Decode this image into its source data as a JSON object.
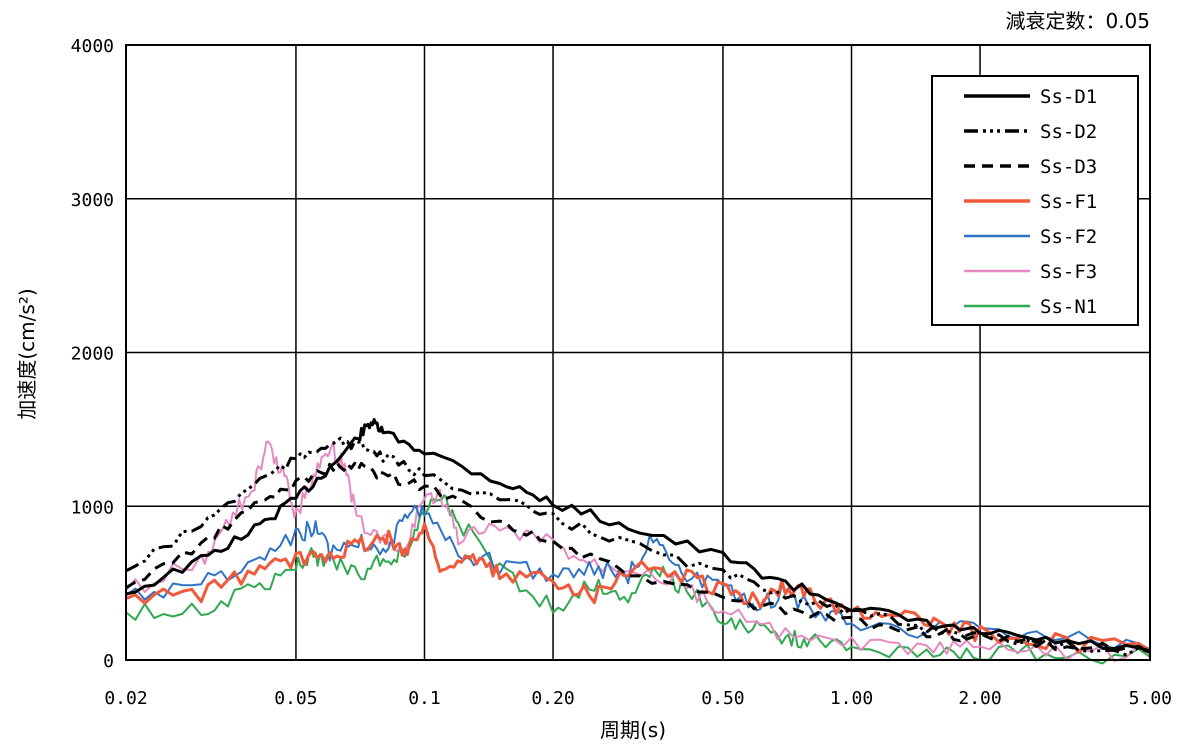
{
  "chart_data": {
    "type": "line",
    "annotation": "減衰定数：0.05",
    "xlabel": "周期(s)",
    "ylabel": "加速度(cm/s²)",
    "x_scale": "log",
    "xlim": [
      0.02,
      5.0
    ],
    "ylim": [
      0,
      4000
    ],
    "x_ticks": [
      0.02,
      0.05,
      0.1,
      0.2,
      0.5,
      1.0,
      2.0,
      5.0
    ],
    "x_tick_labels": [
      "0.02",
      "0.05",
      "0.1",
      "0.20",
      "0.50",
      "1.00",
      "2.00",
      "5.00"
    ],
    "y_ticks": [
      0,
      1000,
      2000,
      3000,
      4000
    ],
    "y_tick_labels": [
      "0",
      "1000",
      "2000",
      "3000",
      "4000"
    ],
    "grid": true,
    "legend_position": "top-right",
    "series": [
      {
        "name": "Ss-D1",
        "color": "#000000",
        "dash": "solid",
        "width": 3,
        "x": [
          0.02,
          0.03,
          0.04,
          0.05,
          0.06,
          0.07,
          0.075,
          0.08,
          0.1,
          0.15,
          0.2,
          0.3,
          0.5,
          0.7,
          1.0,
          1.5,
          2.0,
          3.0,
          5.0
        ],
        "y": [
          430,
          650,
          850,
          1050,
          1250,
          1450,
          1550,
          1480,
          1360,
          1160,
          1020,
          870,
          670,
          500,
          350,
          230,
          180,
          120,
          60
        ]
      },
      {
        "name": "Ss-D2",
        "color": "#000000",
        "dash": "14,5,3,4,3,4,3,5",
        "width": 3,
        "x": [
          0.02,
          0.03,
          0.04,
          0.05,
          0.06,
          0.07,
          0.08,
          0.1,
          0.15,
          0.2,
          0.3,
          0.5,
          0.7,
          1.0,
          1.5,
          2.0,
          3.0,
          5.0
        ],
        "y": [
          580,
          880,
          1150,
          1300,
          1420,
          1400,
          1320,
          1200,
          1050,
          920,
          760,
          560,
          430,
          310,
          210,
          150,
          100,
          50
        ]
      },
      {
        "name": "Ss-D3",
        "color": "#000000",
        "dash": "11,7",
        "width": 3,
        "x": [
          0.02,
          0.03,
          0.04,
          0.05,
          0.06,
          0.07,
          0.08,
          0.1,
          0.15,
          0.2,
          0.3,
          0.5,
          0.7,
          1.0,
          1.5,
          2.0,
          3.0,
          5.0
        ],
        "y": [
          470,
          750,
          1000,
          1150,
          1250,
          1260,
          1200,
          1130,
          900,
          760,
          560,
          400,
          320,
          250,
          180,
          140,
          100,
          60
        ]
      },
      {
        "name": "Ss-F1",
        "color": "#ef5a3c",
        "dash": "solid",
        "width": 3,
        "x": [
          0.02,
          0.03,
          0.04,
          0.05,
          0.06,
          0.07,
          0.08,
          0.09,
          0.1,
          0.11,
          0.13,
          0.15,
          0.2,
          0.25,
          0.3,
          0.4,
          0.5,
          0.6,
          0.7,
          0.8,
          1.0,
          1.3,
          1.6,
          2.0,
          3.0,
          5.0
        ],
        "y": [
          400,
          430,
          580,
          650,
          700,
          750,
          800,
          720,
          860,
          600,
          650,
          550,
          530,
          430,
          600,
          560,
          460,
          380,
          480,
          420,
          300,
          330,
          210,
          180,
          120,
          60
        ]
      },
      {
        "name": "Ss-F2",
        "color": "#2f73c5",
        "dash": "solid",
        "width": 2,
        "x": [
          0.02,
          0.03,
          0.04,
          0.05,
          0.055,
          0.06,
          0.07,
          0.08,
          0.09,
          0.1,
          0.12,
          0.15,
          0.2,
          0.25,
          0.3,
          0.35,
          0.4,
          0.5,
          0.6,
          0.7,
          0.8,
          1.0,
          1.5,
          2.0,
          3.0,
          5.0
        ],
        "y": [
          420,
          500,
          620,
          800,
          870,
          700,
          780,
          720,
          900,
          1000,
          700,
          620,
          560,
          600,
          550,
          840,
          550,
          460,
          330,
          450,
          330,
          260,
          190,
          220,
          150,
          70
        ]
      },
      {
        "name": "Ss-F3",
        "color": "#e58ac0",
        "dash": "solid",
        "width": 2,
        "x": [
          0.02,
          0.03,
          0.035,
          0.04,
          0.043,
          0.047,
          0.05,
          0.055,
          0.06,
          0.065,
          0.07,
          0.08,
          0.09,
          0.1,
          0.11,
          0.12,
          0.15,
          0.2,
          0.25,
          0.3,
          0.4,
          0.5,
          0.7,
          1.0,
          1.5,
          2.0,
          3.0,
          5.0
        ],
        "y": [
          450,
          650,
          900,
          1150,
          1390,
          1200,
          950,
          1200,
          1400,
          1250,
          900,
          780,
          700,
          1080,
          1050,
          800,
          850,
          750,
          620,
          620,
          500,
          320,
          150,
          90,
          70,
          70,
          60,
          40
        ]
      },
      {
        "name": "Ss-N1",
        "color": "#2fa84f",
        "dash": "solid",
        "width": 2,
        "x": [
          0.02,
          0.03,
          0.04,
          0.05,
          0.055,
          0.06,
          0.07,
          0.08,
          0.09,
          0.1,
          0.11,
          0.12,
          0.15,
          0.2,
          0.25,
          0.3,
          0.35,
          0.4,
          0.5,
          0.6,
          0.7,
          0.8,
          1.0,
          1.5,
          2.0,
          3.0,
          5.0
        ],
        "y": [
          310,
          330,
          450,
          620,
          680,
          640,
          560,
          650,
          700,
          950,
          1070,
          900,
          600,
          330,
          500,
          420,
          600,
          480,
          270,
          220,
          150,
          120,
          80,
          60,
          50,
          40,
          20
        ]
      }
    ]
  }
}
